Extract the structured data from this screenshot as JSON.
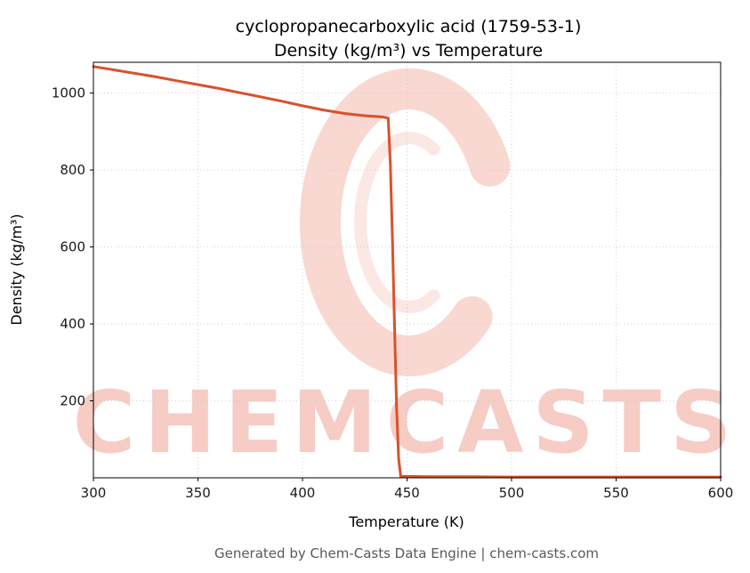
{
  "chart_data": {
    "type": "line",
    "title": "cyclopropanecarboxylic acid (1759-53-1)",
    "subtitle": "Density (kg/m³) vs Temperature",
    "xlabel": "Temperature (K)",
    "ylabel": "Density (kg/m³)",
    "xlim": [
      300,
      600
    ],
    "ylim": [
      0,
      1080
    ],
    "xticks": [
      300,
      350,
      400,
      450,
      500,
      550,
      600
    ],
    "yticks": [
      200,
      400,
      600,
      800,
      1000
    ],
    "grid": true,
    "legend": "none",
    "series": [
      {
        "name": "Density",
        "color": "#d9512c",
        "line_width": 3,
        "points": [
          [
            300,
            1069
          ],
          [
            310,
            1060
          ],
          [
            320,
            1051
          ],
          [
            330,
            1042
          ],
          [
            340,
            1032
          ],
          [
            350,
            1022
          ],
          [
            360,
            1012
          ],
          [
            370,
            1001
          ],
          [
            380,
            990
          ],
          [
            390,
            979
          ],
          [
            400,
            967
          ],
          [
            410,
            956
          ],
          [
            420,
            947
          ],
          [
            430,
            941
          ],
          [
            438,
            938
          ],
          [
            441,
            935
          ],
          [
            442,
            820
          ],
          [
            443,
            620
          ],
          [
            444,
            400
          ],
          [
            445,
            180
          ],
          [
            446,
            50
          ],
          [
            447,
            4
          ],
          [
            460,
            3
          ],
          [
            480,
            3
          ],
          [
            500,
            2
          ],
          [
            520,
            2
          ],
          [
            540,
            2
          ],
          [
            560,
            2
          ],
          [
            580,
            2
          ],
          [
            600,
            2
          ]
        ]
      }
    ]
  },
  "watermark": {
    "text": "CHEMCASTS",
    "color": "#e25a40",
    "text_opacity": 0.3,
    "mark_opacity": 0.24
  },
  "footer": {
    "caption": "Generated by Chem-Casts Data Engine | chem-casts.com"
  }
}
